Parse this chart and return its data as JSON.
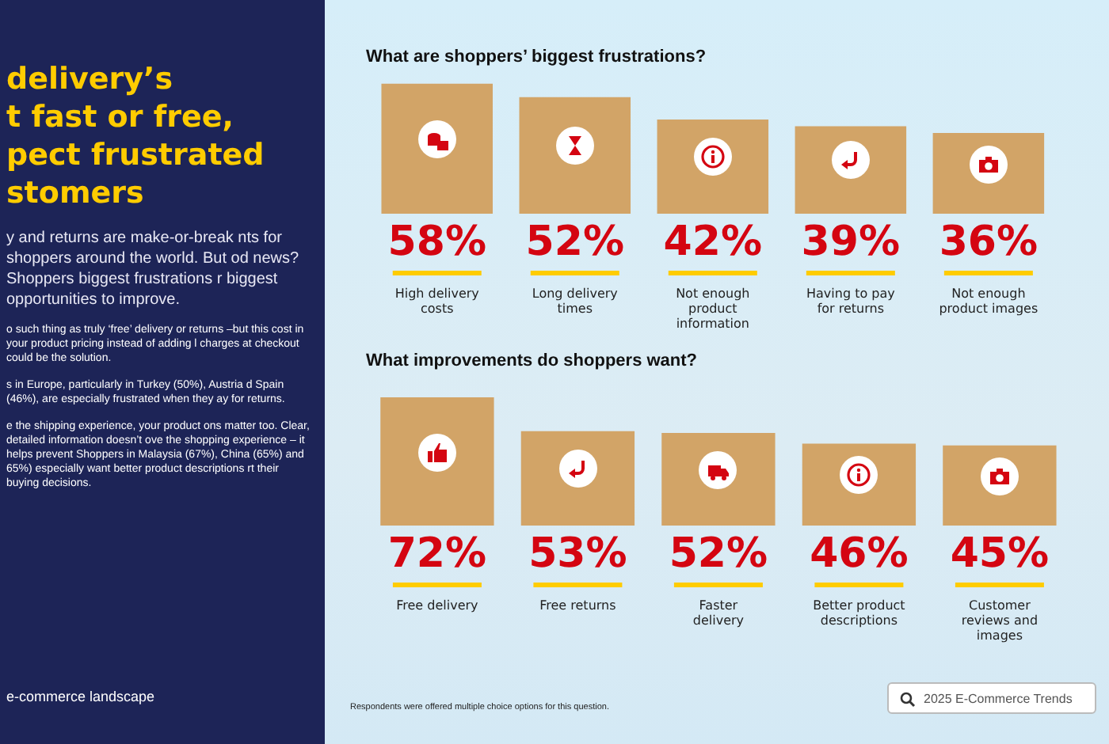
{
  "chart_data": [
    {
      "type": "other",
      "title": "delivery’s\nt fast or free,\npect frustrated\nstomers",
      "annotations": [
        "y and returns are make-or-break nts for shoppers around the world. But od news? Shoppers biggest frustrations r biggest opportunities to improve.",
        "o such thing as truly ‘free’ delivery or returns –but this cost in your product pricing instead of adding l charges at checkout could be the solution.",
        "s in Europe, particularly in Turkey (50%), Austria d Spain (46%), are especially frustrated when they ay for returns.",
        "e the shipping experience, your product ons matter too. Clear, detailed information doesn’t ove the shopping experience – it helps prevent Shoppers in Malaysia (67%), China (65%) and 65%) especially want better product descriptions rt their buying decisions.",
        "e-commerce landscape"
      ]
    },
    {
      "type": "bar",
      "title": "What are shoppers’ biggest frustrations?",
      "categories": [
        "High delivery costs",
        "Long delivery times",
        "Not enough product information",
        "Having to pay for returns",
        "Not enough product images"
      ],
      "values": [
        58,
        52,
        42,
        39,
        36
      ],
      "value_labels": [
        "58%",
        "52%",
        "42%",
        "39%",
        "36%"
      ],
      "color": "#d2a467",
      "grid": false,
      "legend": false
    },
    {
      "type": "bar",
      "title": "What improvements do shoppers want?",
      "categories": [
        "Free delivery",
        "Free returns",
        "Faster delivery",
        "Better product descriptions",
        "Customer reviews and images"
      ],
      "values": [
        72,
        53,
        52,
        46,
        45
      ],
      "value_labels": [
        "72%",
        "53%",
        "52%",
        "46%",
        "45%"
      ],
      "color": "#d2a467",
      "grid": false,
      "legend": false,
      "annotations": [
        "Respondents were offered multiple choice options for this question.",
        "2025 E-Commerce Trends"
      ]
    }
  ]
}
